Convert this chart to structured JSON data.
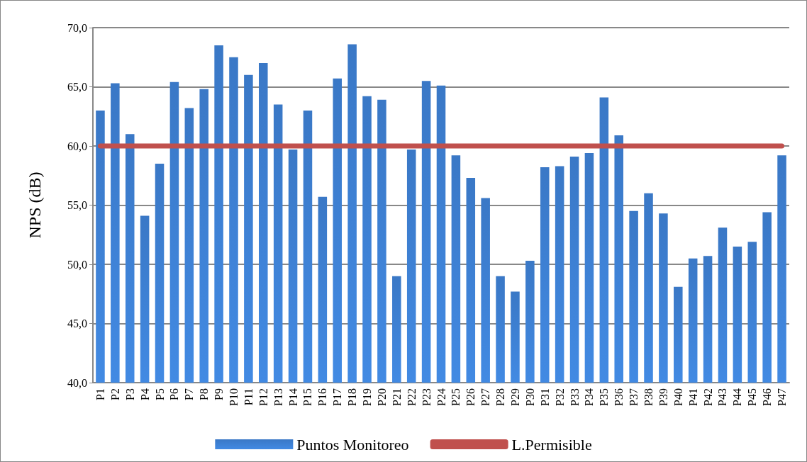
{
  "chart_data": {
    "type": "bar",
    "ylabel": "NPS (dB)",
    "categories": [
      "P1",
      "P2",
      "P3",
      "P4",
      "P5",
      "P6",
      "P7",
      "P8",
      "P9",
      "P10",
      "P11",
      "P12",
      "P13",
      "P14",
      "P15",
      "P16",
      "P17",
      "P18",
      "P19",
      "P20",
      "P21",
      "P22",
      "P23",
      "P24",
      "P25",
      "P26",
      "P27",
      "P28",
      "P29",
      "P30",
      "P31",
      "P32",
      "P33",
      "P34",
      "P35",
      "P36",
      "P37",
      "P38",
      "P39",
      "P40",
      "P41",
      "P42",
      "P43",
      "P44",
      "P45",
      "P46",
      "P47"
    ],
    "series": [
      {
        "name": "Puntos Monitoreo",
        "color": "#3a78c6",
        "values": [
          63.0,
          65.3,
          61.0,
          54.1,
          58.5,
          65.4,
          63.2,
          64.8,
          68.5,
          67.5,
          66.0,
          67.0,
          63.5,
          59.7,
          63.0,
          55.7,
          65.7,
          68.6,
          64.2,
          63.9,
          49.0,
          59.7,
          65.5,
          65.1,
          59.2,
          57.3,
          55.6,
          49.0,
          47.7,
          50.3,
          58.2,
          58.3,
          59.1,
          59.4,
          64.1,
          60.9,
          54.5,
          56.0,
          54.3,
          48.1,
          50.5,
          50.7,
          53.1,
          51.5,
          51.9,
          54.4,
          59.2
        ]
      },
      {
        "name": "L.Permisible",
        "type": "line",
        "color": "#c0504d",
        "marker": "none",
        "values": [
          60,
          60,
          60,
          60,
          60,
          60,
          60,
          60,
          60,
          60,
          60,
          60,
          60,
          60,
          60,
          60,
          60,
          60,
          60,
          60,
          60,
          60,
          60,
          60,
          60,
          60,
          60,
          60,
          60,
          60,
          60,
          60,
          60,
          60,
          60,
          60,
          60,
          60,
          60,
          60,
          60,
          60,
          60,
          60,
          60,
          60,
          60
        ]
      }
    ],
    "ylim": [
      40,
      70
    ],
    "yticks": [
      {
        "value": 40,
        "label": "40,0"
      },
      {
        "value": 45,
        "label": "45,0"
      },
      {
        "value": 50,
        "label": "50,0"
      },
      {
        "value": 55,
        "label": "55,0"
      },
      {
        "value": 60,
        "label": "60,0"
      },
      {
        "value": 65,
        "label": "65,0"
      },
      {
        "value": 70,
        "label": "70,0"
      }
    ],
    "grid": "y",
    "legend": "bottom"
  }
}
